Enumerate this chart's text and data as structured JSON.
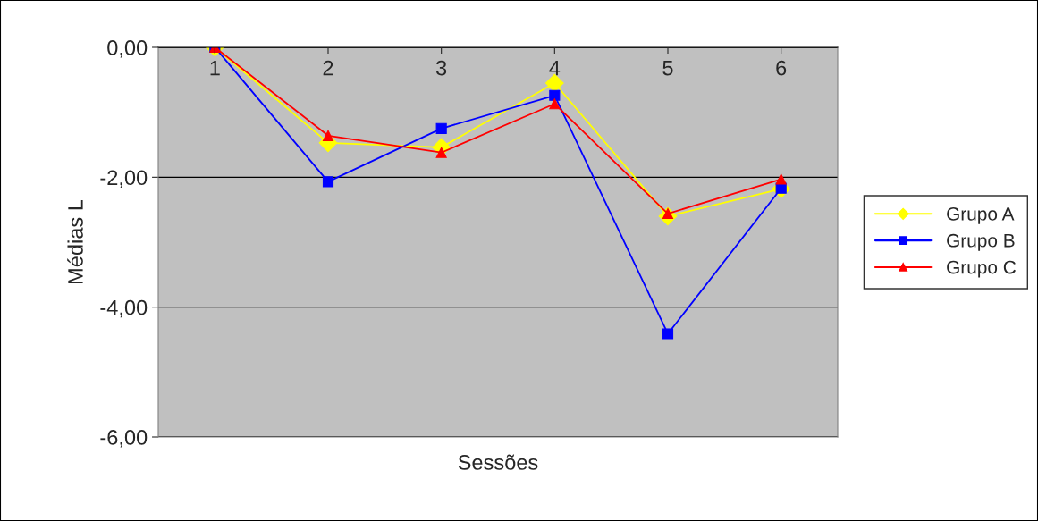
{
  "chart_data": {
    "type": "line",
    "xlabel": "Sessões",
    "ylabel": "Médias L",
    "categories": [
      "1",
      "2",
      "3",
      "4",
      "5",
      "6"
    ],
    "series": [
      {
        "name": "Grupo A",
        "color": "#ffff00",
        "marker": "diamond",
        "values": [
          0,
          -1.47,
          -1.54,
          -0.55,
          -2.6,
          -2.18
        ]
      },
      {
        "name": "Grupo B",
        "color": "#0000ff",
        "marker": "square",
        "values": [
          0,
          -2.07,
          -1.25,
          -0.74,
          -4.41,
          -2.17
        ]
      },
      {
        "name": "Grupo C",
        "color": "#ff0000",
        "marker": "triangle",
        "values": [
          0,
          -1.36,
          -1.62,
          -0.87,
          -2.56,
          -2.03
        ]
      }
    ],
    "ylim": [
      -6,
      0
    ],
    "yticks": [
      {
        "value": 0,
        "label": "0,00"
      },
      {
        "value": -2,
        "label": "-2,00"
      },
      {
        "value": -4,
        "label": "-4,00"
      },
      {
        "value": -6,
        "label": "-6,00"
      }
    ],
    "grid": "y",
    "legend": "right",
    "line_style": "solid"
  }
}
